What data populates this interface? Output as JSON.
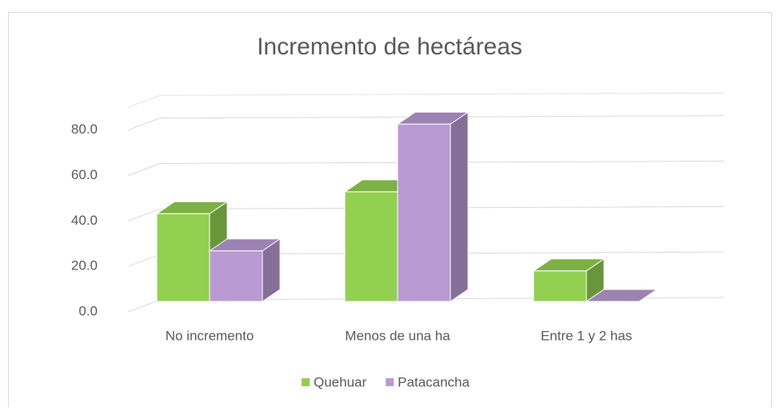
{
  "chart_data": {
    "type": "bar3d",
    "title": "Incremento de hectáreas",
    "categories": [
      "No incremento",
      "Menos de una ha",
      "Entre 1 y 2 has"
    ],
    "series": [
      {
        "name": "Quehuar",
        "color": "#92d050",
        "values": [
          38.5,
          48.1,
          13.4
        ]
      },
      {
        "name": "Patacancha",
        "color": "#b99ad2",
        "values": [
          22.2,
          77.8,
          0.0
        ]
      }
    ],
    "ylim": [
      0,
      90
    ],
    "yticks": [
      {
        "value": 0,
        "label": "0.0"
      },
      {
        "value": 20,
        "label": "20.0"
      },
      {
        "value": 40,
        "label": "40.0"
      },
      {
        "value": 60,
        "label": "60.0"
      },
      {
        "value": 80,
        "label": "80.0"
      }
    ],
    "grid": true,
    "legend": "bottom"
  }
}
